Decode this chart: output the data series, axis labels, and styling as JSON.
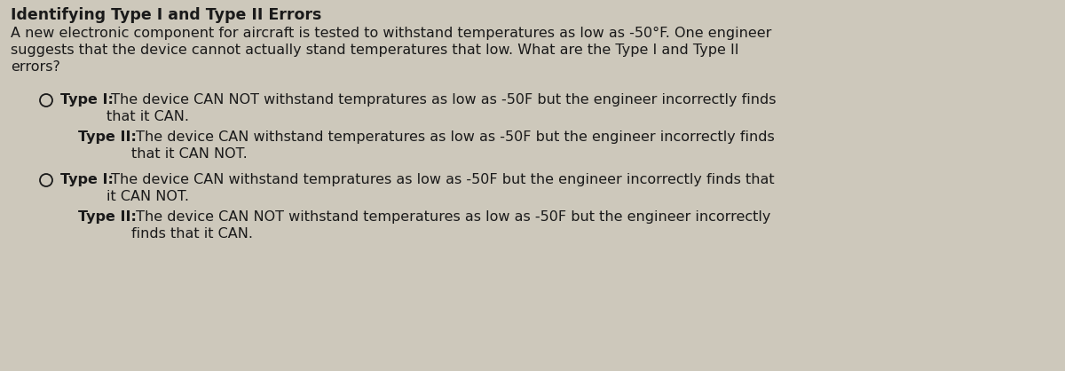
{
  "background_color": "#cdc8bb",
  "title": "Identifying Type I and Type II Errors",
  "intro_line1": "A new electronic component for aircraft is tested to withstand temperatures as low as -50°F. One engineer",
  "intro_line2": "suggests that the device cannot actually stand temperatures that low. What are the Type I and Type II",
  "intro_line3": "errors?",
  "option1_t1_label": "Type I:",
  "option1_t1_text": " The device CAN NOT withstand tempratures as low as -50F but the engineer incorrectly finds",
  "option1_t1_cont": "that it CAN.",
  "option1_t2_label": "Type II:",
  "option1_t2_text": " The device CAN withstand temperatures as low as -50F but the engineer incorrectly finds",
  "option1_t2_cont": "that it CAN NOT.",
  "option2_t1_label": "Type I:",
  "option2_t1_text": " The device CAN withstand tempratures as low as -50F but the engineer incorrectly finds that",
  "option2_t1_cont": "it CAN NOT.",
  "option2_t2_label": "Type II:",
  "option2_t2_text": " The device CAN NOT withstand temperatures as low as -50F but the engineer incorrectly",
  "option2_t2_cont": "finds that it CAN.",
  "font_size_title": 12.5,
  "font_size_body": 11.5,
  "text_color": "#1a1a1a"
}
